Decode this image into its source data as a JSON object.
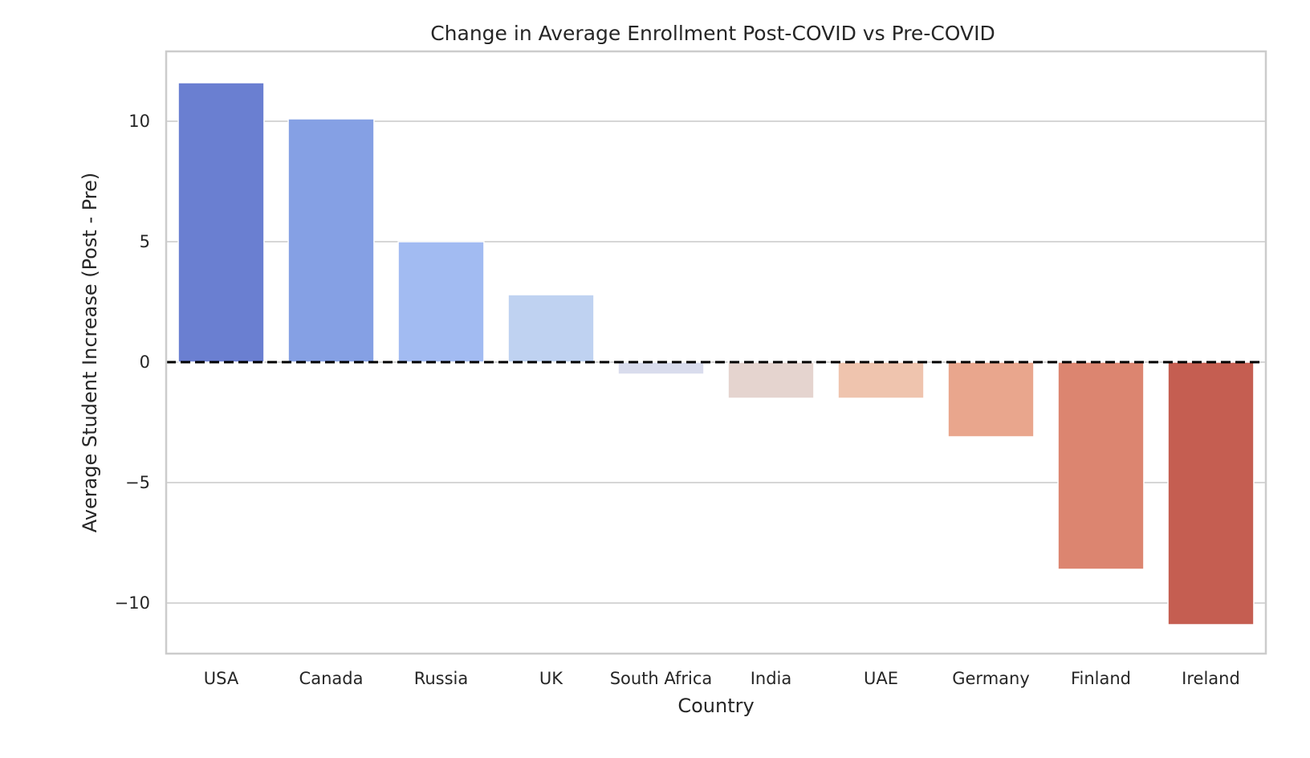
{
  "chart_data": {
    "type": "bar",
    "title": "Change in Average Enrollment Post-COVID vs Pre-COVID",
    "xlabel": "Country",
    "ylabel": "Average Student Increase (Post - Pre)",
    "categories": [
      "USA",
      "Canada",
      "Russia",
      "UK",
      "South Africa",
      "India",
      "UAE",
      "Germany",
      "Finland",
      "Ireland"
    ],
    "values": [
      11.6,
      10.1,
      5.0,
      2.8,
      -0.5,
      -1.5,
      -1.5,
      -3.1,
      -8.6,
      -10.9
    ],
    "colors": [
      "#6a7fd1",
      "#85a0e4",
      "#a2bbf2",
      "#bfd2f1",
      "#d9dced",
      "#e5d4cf",
      "#efc4ae",
      "#e9a68d",
      "#dc8570",
      "#c55e51"
    ],
    "ylim": [
      -12.1,
      12.9
    ],
    "yticks": [
      -10,
      -5,
      0,
      5,
      10
    ],
    "ytick_labels": [
      "−10",
      "−5",
      "0",
      "5",
      "10"
    ],
    "grid": true,
    "reference_line": {
      "y": 0,
      "style": "dashed",
      "color": "#000000"
    }
  }
}
